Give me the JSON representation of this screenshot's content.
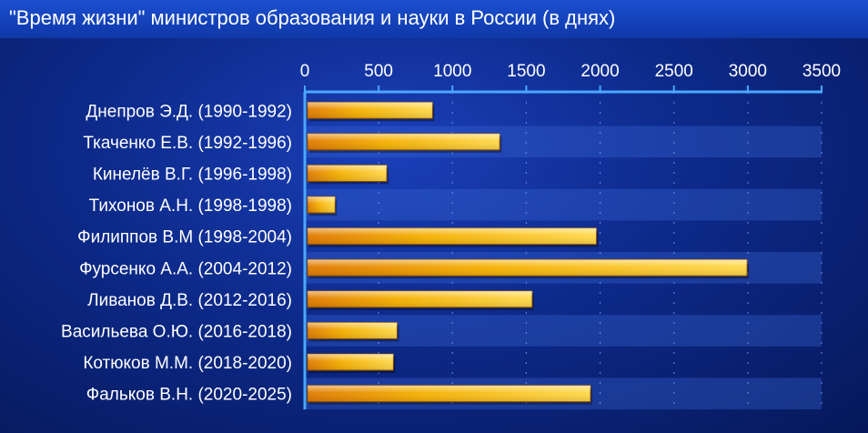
{
  "title": "\"Время жизни\" министров образования и науки в России (в днях)",
  "chart_data": {
    "type": "bar",
    "orientation": "horizontal",
    "title": "\"Время жизни\" министров образования и науки в России (в днях)",
    "categories": [
      "Днепров Э.Д. (1990-1992)",
      "Ткаченко Е.В. (1992-1996)",
      "Кинелёв В.Г. (1996-1998)",
      "Тихонов А.Н. (1998-1998)",
      "Филиппов В.М (1998-2004)",
      "Фурсенко А.А. (2004-2012)",
      "Ливанов Д.В. (2012-2016)",
      "Васильева О.Ю. (2016-2018)",
      "Котюков М.М. (2018-2020)",
      "Фальков В.Н. (2020-2025)"
    ],
    "values": [
      865,
      1320,
      555,
      205,
      1975,
      2995,
      1540,
      625,
      600,
      1935
    ],
    "xlim": [
      0,
      3500
    ],
    "xticks": [
      0,
      500,
      1000,
      1500,
      2000,
      2500,
      3000,
      3500
    ],
    "xticks_labels": [
      "0",
      "500",
      "1000",
      "1500",
      "2000",
      "2500",
      "3000",
      "3500"
    ],
    "axis_position": "top",
    "grid": true,
    "legend": "none",
    "colors": {
      "bar_light": "#fff07a",
      "bar_mid": "#f5b800",
      "bar_dark": "#e07a00",
      "band_alt": "#3a68d8",
      "axis": "#4aa8ff"
    }
  }
}
